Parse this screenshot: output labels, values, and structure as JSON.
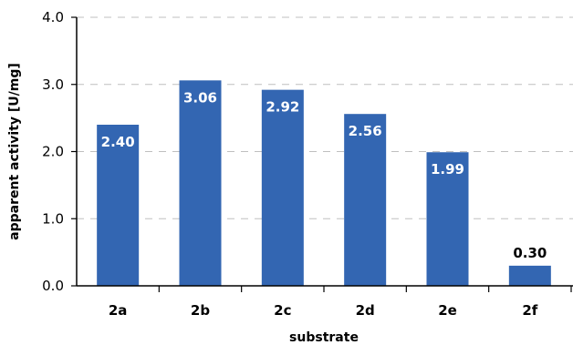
{
  "chart_data": {
    "type": "bar",
    "title": "",
    "xlabel": "substrate",
    "ylabel": "apparent activity [U/mg]",
    "categories": [
      "2a",
      "2b",
      "2c",
      "2d",
      "2e",
      "2f"
    ],
    "values": [
      2.4,
      3.06,
      2.92,
      2.56,
      1.99,
      0.3
    ],
    "data_labels": [
      "2.40",
      "3.06",
      "2.92",
      "2.56",
      "1.99",
      "0.30"
    ],
    "ylim": [
      0,
      4.0
    ],
    "yticks": [
      0,
      1.0,
      2.0,
      3.0,
      4.0
    ],
    "ytick_labels": [
      "0.0",
      "1.0",
      "2.0",
      "3.0",
      "4.0"
    ],
    "grid": true,
    "legend": "none",
    "bar_color": "#3366b2"
  }
}
